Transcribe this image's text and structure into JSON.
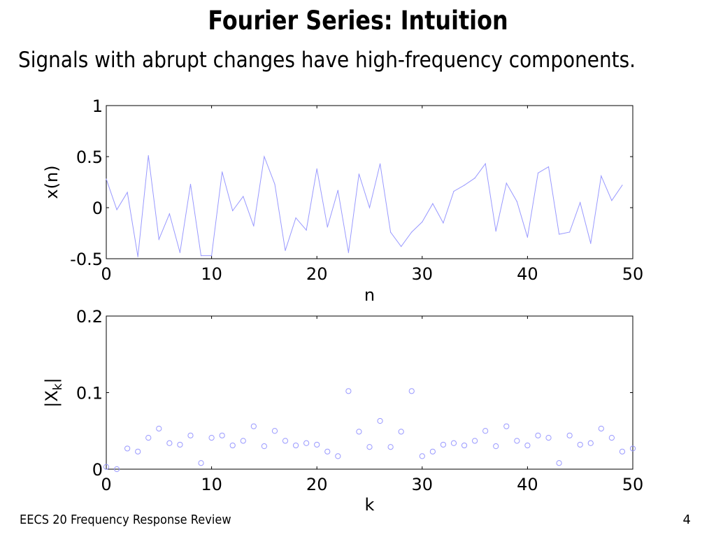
{
  "slide": {
    "title": "Fourier Series:  Intuition",
    "subtitle": "Signals with abrupt changes have high-frequency components.",
    "footer_left": "EECS 20 Frequency Response Review",
    "page_number": "4"
  },
  "colors": {
    "series": "#9999ff",
    "axis": "#000000"
  },
  "chart_data": [
    {
      "type": "line",
      "xlabel": "n",
      "ylabel": "x(n)",
      "xlim": [
        0,
        50
      ],
      "ylim": [
        -0.5,
        1
      ],
      "xticks": [
        "0",
        "10",
        "20",
        "30",
        "40",
        "50"
      ],
      "yticks": [
        "-0.5",
        "0",
        "0.5",
        "1"
      ],
      "grid": false,
      "series": [
        {
          "x": [
            0,
            1,
            2,
            3,
            4,
            5,
            6,
            7,
            8,
            9,
            10,
            11,
            12,
            13,
            14,
            15,
            16,
            17,
            18,
            19,
            20,
            21,
            22,
            23,
            24,
            25,
            26,
            27,
            28,
            29,
            30,
            31,
            32,
            33,
            34,
            35,
            36,
            37,
            38,
            39,
            40,
            41,
            42,
            43,
            44,
            45,
            46,
            47,
            48,
            49
          ],
          "values": [
            0.28,
            -0.02,
            0.15,
            -0.48,
            0.51,
            -0.31,
            -0.06,
            -0.44,
            0.23,
            -0.47,
            -0.47,
            0.35,
            -0.03,
            0.11,
            -0.18,
            0.5,
            0.23,
            -0.42,
            -0.1,
            -0.22,
            0.38,
            -0.19,
            0.17,
            -0.44,
            0.33,
            0.0,
            0.43,
            -0.24,
            -0.38,
            -0.24,
            -0.14,
            0.04,
            -0.15,
            0.16,
            0.22,
            0.29,
            0.43,
            -0.23,
            0.24,
            0.06,
            -0.29,
            0.34,
            0.4,
            -0.26,
            -0.24,
            0.05,
            -0.35,
            0.31,
            0.07,
            0.22
          ]
        }
      ]
    },
    {
      "type": "scatter",
      "xlabel": "k",
      "ylabel": "|X",
      "ylabel_sub": "k",
      "ylabel_end": "|",
      "xlim": [
        0,
        50
      ],
      "ylim": [
        0,
        0.2
      ],
      "xticks": [
        "0",
        "10",
        "20",
        "30",
        "40",
        "50"
      ],
      "yticks": [
        "0",
        "0.1",
        "0.2"
      ],
      "grid": false,
      "series": [
        {
          "x": [
            0,
            1,
            2,
            3,
            4,
            5,
            6,
            7,
            8,
            9,
            10,
            11,
            12,
            13,
            14,
            15,
            16,
            17,
            18,
            19,
            20,
            21,
            22,
            23,
            24,
            25,
            26,
            27,
            28,
            29,
            30,
            31,
            32,
            33,
            34,
            35,
            36,
            37,
            38,
            39,
            40,
            41,
            42,
            43,
            44,
            45,
            46,
            47,
            48,
            49,
            50
          ],
          "values": [
            0.003,
            0.0,
            0.027,
            0.023,
            0.041,
            0.053,
            0.034,
            0.032,
            0.044,
            0.008,
            0.041,
            0.044,
            0.031,
            0.037,
            0.056,
            0.03,
            0.05,
            0.037,
            0.031,
            0.034,
            0.032,
            0.023,
            0.017,
            0.102,
            0.049,
            0.029,
            0.063,
            0.029,
            0.049,
            0.102,
            0.017,
            0.023,
            0.032,
            0.034,
            0.031,
            0.037,
            0.05,
            0.03,
            0.056,
            0.037,
            0.031,
            0.044,
            0.041,
            0.008,
            0.044,
            0.032,
            0.034,
            0.053,
            0.041,
            0.023,
            0.027
          ]
        }
      ]
    }
  ]
}
